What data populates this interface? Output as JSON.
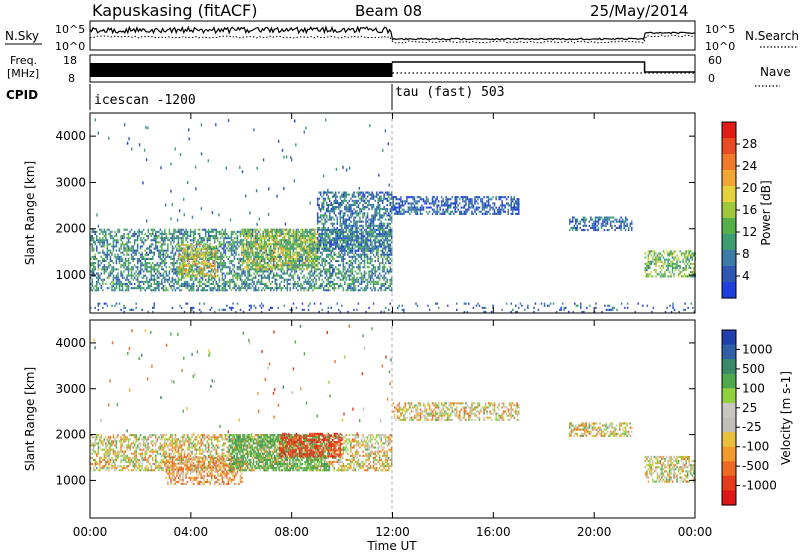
{
  "header": {
    "station": "Kapuskasing (fitACF)",
    "beam": "Beam 08",
    "date": "25/May/2014"
  },
  "top_panels": {
    "nsky_label": "N.Sky",
    "nsearch_label": "N.Search",
    "freq_label_1": "Freq.",
    "freq_label_2": "[MHz]",
    "nave_label": "Nave",
    "cpid_label": "CPID",
    "noise_ticks": [
      "10^5",
      "10^0"
    ],
    "freq_ticks": [
      "18",
      "8"
    ],
    "nave_ticks": [
      "60",
      "0"
    ],
    "cpid_segments": [
      {
        "start_hour": 0,
        "label": "icescan -1200"
      },
      {
        "start_hour": 12,
        "label": "tau (fast) 503"
      }
    ]
  },
  "axes": {
    "xlabel": "Time UT",
    "x_ticks": [
      "00:00",
      "04:00",
      "08:00",
      "12:00",
      "16:00",
      "20:00",
      "00:00"
    ],
    "ylabel": "Slant Range [km]",
    "y_ticks": [
      "1000",
      "2000",
      "3000",
      "4000"
    ]
  },
  "power_colorbar": {
    "label": "Power [dB]",
    "ticks": [
      "4",
      "8",
      "12",
      "16",
      "20",
      "24",
      "28"
    ],
    "colors": [
      "#1f3fe0",
      "#2f56b0",
      "#3c7aa8",
      "#3a9e72",
      "#56b04a",
      "#9cc83a",
      "#e6d23a",
      "#f2a533",
      "#f07a2a",
      "#e94a22",
      "#e21b16"
    ]
  },
  "velocity_colorbar": {
    "label": "Velocity [m s-1]",
    "ticks": [
      "1000",
      "500",
      "100",
      "25",
      "-25",
      "-100",
      "-500",
      "-1000"
    ],
    "colors": [
      "#1f3fae",
      "#2f5fa6",
      "#3a8a6a",
      "#4fa84a",
      "#8fd23c",
      "#c8c8c0",
      "#c0c0b8",
      "#e9c13a",
      "#f29a2a",
      "#ee6a22",
      "#e53c1c",
      "#e01616"
    ]
  },
  "chart_data": {
    "type": "heatmap",
    "x_range_hours": [
      0,
      24
    ],
    "range_km": [
      180,
      4500
    ],
    "panels": [
      {
        "name": "power",
        "unit": "dB",
        "regions": [
          {
            "t0": 0.0,
            "t1": 12.0,
            "r0": 650,
            "r1": 2000,
            "val": 10
          },
          {
            "t0": 3.5,
            "t1": 5.0,
            "r0": 950,
            "r1": 1650,
            "val": 18
          },
          {
            "t0": 6.0,
            "t1": 9.0,
            "r0": 1100,
            "r1": 2000,
            "val": 16
          },
          {
            "t0": 9.0,
            "t1": 12.0,
            "r0": 1500,
            "r1": 2800,
            "val": 8
          },
          {
            "t0": 12.0,
            "t1": 17.0,
            "r0": 2300,
            "r1": 2700,
            "val": 6
          },
          {
            "t0": 19.0,
            "t1": 21.5,
            "r0": 1950,
            "r1": 2250,
            "val": 7
          },
          {
            "t0": 22.0,
            "t1": 24.0,
            "r0": 950,
            "r1": 1500,
            "val": 14
          },
          {
            "t0": 0.0,
            "t1": 24.0,
            "r0": 180,
            "r1": 400,
            "val": 6
          }
        ]
      },
      {
        "name": "velocity",
        "unit": "m s-1",
        "regions": [
          {
            "t0": 0.0,
            "t1": 12.0,
            "r0": 1200,
            "r1": 2000,
            "val": 0
          },
          {
            "t0": 3.0,
            "t1": 6.0,
            "r0": 900,
            "r1": 1500,
            "val": -100
          },
          {
            "t0": 5.5,
            "t1": 9.5,
            "r0": 1200,
            "r1": 2000,
            "val": 200
          },
          {
            "t0": 7.5,
            "t1": 10.0,
            "r0": 1500,
            "r1": 2000,
            "val": -400
          },
          {
            "t0": 12.0,
            "t1": 17.0,
            "r0": 2300,
            "r1": 2700,
            "val": 0
          },
          {
            "t0": 19.0,
            "t1": 21.5,
            "r0": 1950,
            "r1": 2250,
            "val": 0
          },
          {
            "t0": 22.0,
            "t1": 24.0,
            "r0": 950,
            "r1": 1500,
            "val": 0
          }
        ]
      }
    ]
  }
}
